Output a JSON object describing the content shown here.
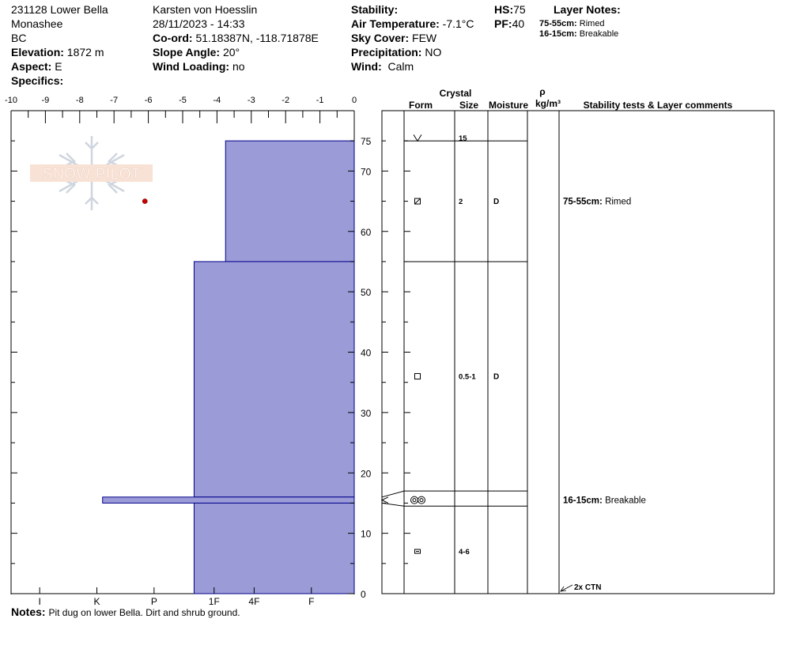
{
  "header": {
    "pit_name": "231128 Lower Bella",
    "range": "Monashee",
    "region": "BC",
    "elevation_label": "Elevation:",
    "elevation": "1872 m",
    "aspect_label": "Aspect:",
    "aspect": "E",
    "specifics_label": "Specifics:",
    "observer": "Karsten  von Hoesslin",
    "datetime": "28/11/2023 - 14:33",
    "coord_label": "Co-ord:",
    "coord": "51.18387N, -118.71878E",
    "slope_label": "Slope Angle:",
    "slope": "20°",
    "wind_loading_label": "Wind Loading:",
    "wind_loading": "no",
    "stability_label": "Stability:",
    "air_temp_label": "Air Temperature:",
    "air_temp": "-7.1°C",
    "sky_label": "Sky Cover:",
    "sky": "FEW",
    "precip_label": "Precipitation:",
    "precip": "NO",
    "wind_label": "Wind:",
    "wind": "Calm",
    "hs_label": "HS:",
    "hs": "75",
    "pf_label": "PF:",
    "pf": "40",
    "layer_notes_title": "Layer Notes:",
    "layer_notes": [
      {
        "range": "75-55cm:",
        "note": "Rimed"
      },
      {
        "range": "16-15cm:",
        "note": "Breakable"
      }
    ]
  },
  "notes": {
    "label": "Notes:",
    "text": "Pit dug on lower Bella. Dirt and shrub ground."
  },
  "logo_text": "SNOW PILOT",
  "column_headers": {
    "crystal": "Crystal",
    "form": "Form",
    "size": "Size",
    "moisture": "Moisture",
    "rho": "ρ",
    "density_unit": "kg/m³",
    "stability": "Stability tests & Layer comments"
  },
  "chart_data": {
    "type": "bar",
    "temperature_axis": {
      "ticks": [
        "-10",
        "-9",
        "-8",
        "-7",
        "-6",
        "-5",
        "-4",
        "-3",
        "-2",
        "-1",
        "0"
      ],
      "range": [
        -10,
        0
      ]
    },
    "height_axis": {
      "ticks": [
        "0",
        "10",
        "20",
        "30",
        "40",
        "50",
        "60",
        "70",
        "75"
      ],
      "range": [
        0,
        75
      ]
    },
    "hardness_axis": {
      "ticks": [
        "I",
        "K",
        "P",
        "1F",
        "4F",
        "F"
      ]
    },
    "hardness_profile": [
      {
        "top": 75,
        "bottom": 55,
        "hardness_value": 2.25
      },
      {
        "top": 55,
        "bottom": 16,
        "hardness_value": 2.8
      },
      {
        "top": 16,
        "bottom": 15,
        "hardness_value": 4.4
      },
      {
        "top": 15,
        "bottom": 0,
        "hardness_value": 2.8
      }
    ],
    "temperature_points": [
      {
        "height": 65,
        "temp": -6.1
      }
    ],
    "colors": {
      "profile_fill": "#9b9bd7",
      "profile_stroke": "#00008b",
      "temp_point": "#cc0000"
    }
  },
  "layers": [
    {
      "height": 75.5,
      "form": "new-snow-icon",
      "size": "15",
      "moisture": "",
      "comment": ""
    },
    {
      "height": 65,
      "form": "rimed-icon",
      "size": "2",
      "moisture": "D",
      "comment": "75-55cm:",
      "comment_text": "Rimed"
    },
    {
      "height": 36,
      "form": "faceted-icon",
      "size": "0.5-1",
      "moisture": "D",
      "comment": "",
      "comment_text": ""
    },
    {
      "height": 15.5,
      "form": "melt-freeze-icon",
      "size": "",
      "moisture": "",
      "comment": "16-15cm:",
      "comment_text": "Breakable"
    },
    {
      "height": 7,
      "form": "depth-hoar-icon",
      "size": "4-6",
      "moisture": "",
      "comment": "",
      "comment_text": ""
    }
  ],
  "layer_boundaries": [
    75,
    55,
    17,
    14.5
  ],
  "test_result": "2x CTN"
}
